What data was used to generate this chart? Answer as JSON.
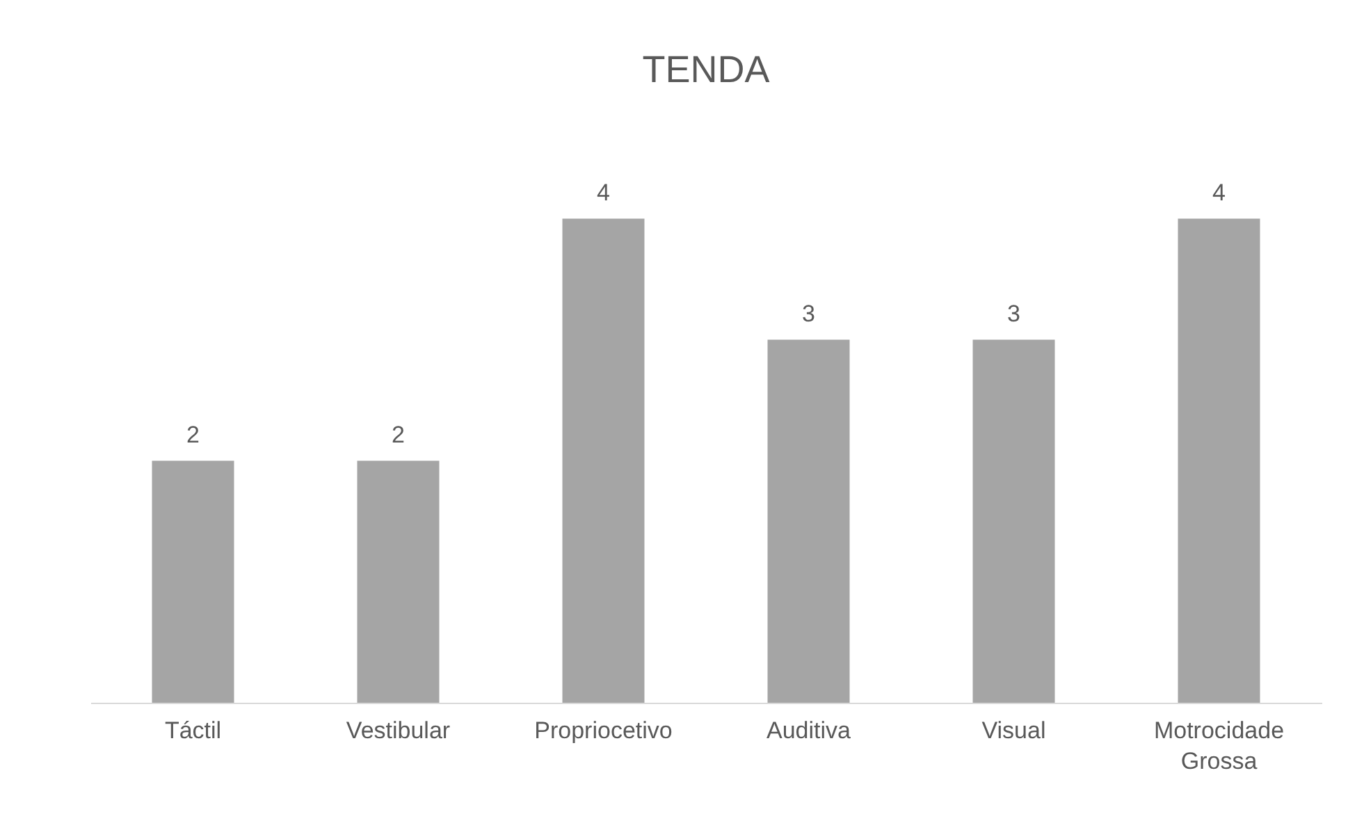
{
  "chart_data": {
    "type": "bar",
    "title": "TENDA",
    "categories": [
      "Táctil",
      "Vestibular",
      "Propriocetivo",
      "Auditiva",
      "Visual",
      "Motrocidade Grossa"
    ],
    "values": [
      2,
      2,
      4,
      3,
      3,
      4
    ],
    "color": "#a5a5a5",
    "data_labels": true,
    "tick_labels": "x"
  }
}
